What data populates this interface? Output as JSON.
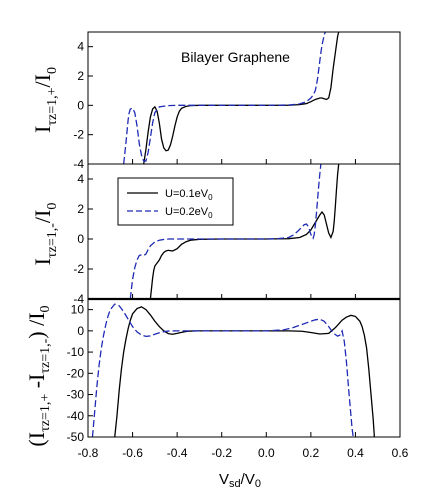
{
  "chart_data": {
    "type": "line",
    "annotation": "Bilayer Graphene",
    "xlabel": {
      "main": "V",
      "sub": "sd",
      "tail": "/V",
      "sub2": "0"
    },
    "xlim": [
      -0.8,
      0.6
    ],
    "xticks": [
      "-0.8",
      "-0.6",
      "-0.4",
      "-0.2",
      "0.0",
      "0.2",
      "0.4",
      "0.6"
    ],
    "legend": {
      "position": "top-left of middle panel",
      "entries": [
        {
          "label": "U=0.1eV",
          "sub": "0",
          "color": "#000000",
          "dash": "solid"
        },
        {
          "label": "U=0.2eV",
          "sub": "0",
          "color": "#1f2bb4",
          "dash": "dashed"
        }
      ]
    },
    "panels": [
      {
        "id": "top",
        "ylabel": {
          "main": "I",
          "sub": "τz=1,+",
          "tail": "/I",
          "sub2": "0"
        },
        "ylim": [
          -4,
          5
        ],
        "yticks": [
          "4",
          "2",
          "0",
          "-2",
          "-4"
        ],
        "series": [
          {
            "color": "#000000",
            "dash": "solid",
            "x": [
              -0.55,
              -0.54,
              -0.53,
              -0.52,
              -0.51,
              -0.5,
              -0.49,
              -0.48,
              -0.47,
              -0.46,
              -0.45,
              -0.44,
              -0.43,
              -0.42,
              -0.41,
              -0.4,
              -0.39,
              -0.38,
              -0.36,
              -0.34,
              -0.3,
              -0.2,
              -0.1,
              0.0,
              0.1,
              0.15,
              0.18,
              0.2,
              0.22,
              0.24,
              0.25,
              0.26,
              0.27,
              0.28,
              0.29,
              0.3,
              0.31,
              0.32,
              0.325
            ],
            "y": [
              -4.0,
              -3.0,
              -1.8,
              -0.8,
              -0.25,
              -0.1,
              -0.4,
              -1.2,
              -2.3,
              -2.9,
              -3.1,
              -3.05,
              -2.7,
              -2.1,
              -1.4,
              -0.8,
              -0.4,
              -0.2,
              -0.07,
              -0.02,
              0,
              0,
              0,
              0,
              0.01,
              0.05,
              0.12,
              0.25,
              0.4,
              0.5,
              0.5,
              0.45,
              0.4,
              0.5,
              1.2,
              2.5,
              3.6,
              4.7,
              5.0
            ]
          },
          {
            "color": "#1f2bb4",
            "dash": "dashed",
            "x": [
              -0.64,
              -0.63,
              -0.62,
              -0.615,
              -0.61,
              -0.6,
              -0.59,
              -0.58,
              -0.57,
              -0.56,
              -0.55,
              -0.54,
              -0.53,
              -0.52,
              -0.51,
              -0.5,
              -0.48,
              -0.44,
              -0.4,
              -0.3,
              -0.2,
              -0.1,
              0.0,
              0.1,
              0.15,
              0.18,
              0.2,
              0.21,
              0.22,
              0.225,
              0.23,
              0.235,
              0.24,
              0.245,
              0.25,
              0.26,
              0.27,
              0.28
            ],
            "y": [
              -4.0,
              -2.6,
              -1.0,
              -0.5,
              -0.25,
              -0.2,
              -0.5,
              -1.4,
              -2.6,
              -3.4,
              -3.8,
              -3.8,
              -3.2,
              -2.2,
              -1.2,
              -0.5,
              -0.1,
              -0.02,
              0,
              0,
              0,
              0,
              0,
              0.02,
              0.1,
              0.25,
              0.5,
              0.7,
              1.0,
              1.4,
              1.8,
              2.4,
              3.0,
              3.6,
              4.1,
              4.8,
              5.2,
              5.4
            ]
          }
        ]
      },
      {
        "id": "middle",
        "ylabel": {
          "main": "I",
          "sub": "τz=1,-",
          "tail": "/I",
          "sub2": "0"
        },
        "ylim": [
          -4,
          5
        ],
        "yticks": [
          "4",
          "2",
          "0",
          "-2",
          "-4"
        ],
        "series": [
          {
            "color": "#000000",
            "dash": "solid",
            "x": [
              -0.52,
              -0.515,
              -0.51,
              -0.505,
              -0.5,
              -0.49,
              -0.48,
              -0.47,
              -0.46,
              -0.45,
              -0.44,
              -0.43,
              -0.42,
              -0.4,
              -0.38,
              -0.36,
              -0.34,
              -0.3,
              -0.2,
              -0.1,
              0.0,
              0.1,
              0.15,
              0.18,
              0.2,
              0.22,
              0.24,
              0.25,
              0.26,
              0.27,
              0.28,
              0.29,
              0.3,
              0.305,
              0.31,
              0.315,
              0.32,
              0.325,
              0.33
            ],
            "y": [
              -4.0,
              -3.3,
              -2.6,
              -2.1,
              -1.8,
              -1.6,
              -1.4,
              -1.1,
              -0.9,
              -0.8,
              -0.75,
              -0.78,
              -0.8,
              -0.65,
              -0.35,
              -0.18,
              -0.08,
              -0.02,
              0,
              0,
              0,
              0.02,
              0.1,
              0.3,
              0.6,
              1.1,
              1.6,
              1.8,
              1.6,
              1.0,
              0.4,
              0.1,
              0.5,
              1.2,
              2.2,
              3.3,
              4.3,
              5.0,
              5.5
            ]
          },
          {
            "color": "#1f2bb4",
            "dash": "dashed",
            "x": [
              -0.61,
              -0.605,
              -0.6,
              -0.595,
              -0.59,
              -0.58,
              -0.57,
              -0.56,
              -0.55,
              -0.54,
              -0.53,
              -0.52,
              -0.5,
              -0.48,
              -0.46,
              -0.44,
              -0.4,
              -0.3,
              -0.2,
              -0.1,
              0.0,
              0.05,
              0.1,
              0.12,
              0.14,
              0.16,
              0.17,
              0.18,
              0.19,
              0.2,
              0.21,
              0.215,
              0.22,
              0.225,
              0.23,
              0.235,
              0.24,
              0.245
            ],
            "y": [
              -4.0,
              -3.3,
              -2.7,
              -2.3,
              -1.9,
              -1.4,
              -1.1,
              -1.05,
              -1.1,
              -1.0,
              -0.7,
              -0.45,
              -0.2,
              -0.08,
              -0.03,
              0,
              0,
              0,
              0,
              0,
              0,
              0.02,
              0.1,
              0.25,
              0.5,
              0.8,
              0.95,
              1.0,
              0.8,
              0.3,
              0.05,
              0.3,
              0.9,
              1.7,
              2.6,
              3.5,
              4.3,
              5.0
            ]
          }
        ]
      },
      {
        "id": "bottom",
        "ylabel": {
          "prefix": "(I",
          "s1": "τz=1,+",
          "mid": " -I",
          "s2": "τz=1,-",
          "tail": ") /I",
          "s3": "0"
        },
        "ylim": [
          -50,
          15
        ],
        "yticks": [
          "10",
          "0",
          "-10",
          "-20",
          "-30",
          "-40",
          "-50"
        ],
        "series": [
          {
            "color": "#000000",
            "dash": "solid",
            "x": [
              -0.68,
              -0.67,
              -0.66,
              -0.65,
              -0.64,
              -0.63,
              -0.62,
              -0.61,
              -0.6,
              -0.58,
              -0.56,
              -0.54,
              -0.52,
              -0.5,
              -0.48,
              -0.46,
              -0.44,
              -0.42,
              -0.4,
              -0.38,
              -0.36,
              -0.34,
              -0.3,
              -0.2,
              -0.1,
              0.0,
              0.1,
              0.16,
              0.2,
              0.24,
              0.28,
              0.31,
              0.34,
              0.36,
              0.38,
              0.4,
              0.42,
              0.43,
              0.44,
              0.45,
              0.46,
              0.47,
              0.48,
              0.485
            ],
            "y": [
              -50,
              -40,
              -28,
              -18,
              -10,
              -4,
              1,
              5,
              8,
              10.5,
              11.3,
              10,
              7.5,
              4.5,
              2,
              0,
              -1.3,
              -1.6,
              -1.2,
              -0.7,
              -0.3,
              -0.1,
              0,
              0,
              0,
              0,
              0,
              -0.2,
              -0.8,
              -1.5,
              -1.2,
              1.5,
              5,
              6.5,
              7.3,
              6.8,
              4.5,
              2,
              -2,
              -8,
              -18,
              -30,
              -42,
              -50
            ]
          },
          {
            "color": "#1f2bb4",
            "dash": "dashed",
            "x": [
              -0.78,
              -0.77,
              -0.76,
              -0.75,
              -0.74,
              -0.73,
              -0.72,
              -0.71,
              -0.7,
              -0.68,
              -0.66,
              -0.64,
              -0.62,
              -0.6,
              -0.58,
              -0.56,
              -0.54,
              -0.52,
              -0.5,
              -0.48,
              -0.46,
              -0.44,
              -0.4,
              -0.3,
              -0.2,
              -0.1,
              0.0,
              0.08,
              0.12,
              0.16,
              0.2,
              0.22,
              0.24,
              0.26,
              0.28,
              0.3,
              0.32,
              0.33,
              0.34,
              0.35,
              0.36,
              0.37,
              0.38,
              0.385,
              0.39
            ],
            "y": [
              -50,
              -38,
              -26,
              -16,
              -8,
              -2,
              3,
              7,
              10,
              12.6,
              11.8,
              9,
              5.5,
              2,
              -0.5,
              -2,
              -2.6,
              -2.4,
              -1.6,
              -0.9,
              -0.4,
              -0.1,
              0,
              0,
              0,
              0,
              0,
              0.5,
              1.5,
              3,
              4.5,
              5.2,
              5.5,
              4.5,
              2,
              -1,
              -2.5,
              -2,
              0,
              -5,
              -15,
              -28,
              -40,
              -46,
              -50
            ]
          }
        ]
      }
    ]
  }
}
